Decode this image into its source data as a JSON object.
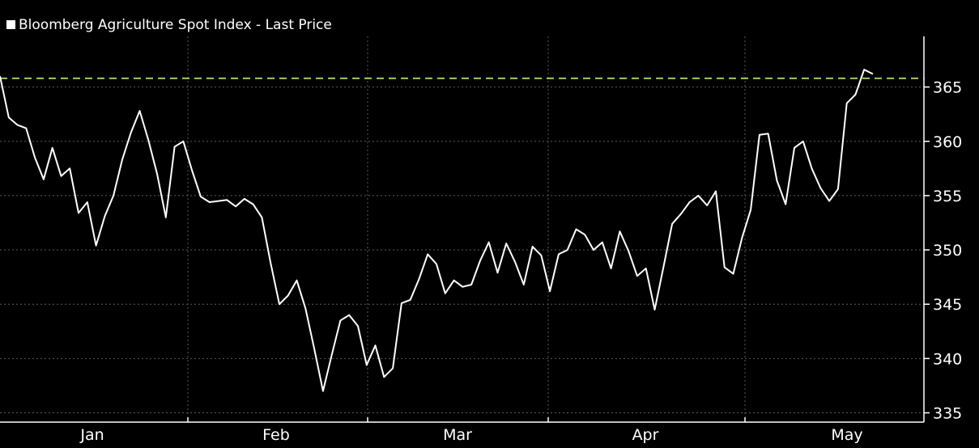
{
  "chart_data": {
    "type": "line",
    "legend": "Bloomberg Agriculture Spot Index - Last Price",
    "xlabel": "",
    "ylabel": "",
    "x_tick_labels": [
      "Jan",
      "Feb",
      "Mar",
      "Apr",
      "May"
    ],
    "y_ticks": [
      335,
      340,
      345,
      350,
      355,
      360,
      365
    ],
    "ylim": [
      334,
      368
    ],
    "grid": true,
    "legend_placement": "top-left",
    "reference_line": {
      "value": 365.8,
      "style": "dashed",
      "color": "#9acd5a"
    },
    "series": [
      {
        "color": "#ffffff",
        "values": [
          366.0,
          362.2,
          361.5,
          361.2,
          358.5,
          356.5,
          359.4,
          356.8,
          357.5,
          353.4,
          354.4,
          350.4,
          353.1,
          355.0,
          358.3,
          360.8,
          362.8,
          360.1,
          357.0,
          353.0,
          359.5,
          360.0,
          357.3,
          354.9,
          354.4,
          354.5,
          354.6,
          354.0,
          354.7,
          354.2,
          353.0,
          348.8,
          345.0,
          345.8,
          347.2,
          344.6,
          340.9,
          337.0,
          340.3,
          343.5,
          344.0,
          343.0,
          339.4,
          341.2,
          338.3,
          339.1,
          345.1,
          345.4,
          347.3,
          349.6,
          348.7,
          346.0,
          347.2,
          346.6,
          346.8,
          349.0,
          350.7,
          347.9,
          350.6,
          348.9,
          346.8,
          350.3,
          349.5,
          346.2,
          349.6,
          350.0,
          351.9,
          351.4,
          350.0,
          350.7,
          348.3,
          351.7,
          349.9,
          347.6,
          348.3,
          344.5,
          348.4,
          352.4,
          353.3,
          354.4,
          355.0,
          354.1,
          355.4,
          348.4,
          347.8,
          351.1,
          353.7,
          360.6,
          360.7,
          356.4,
          354.2,
          359.4,
          360.0,
          357.5,
          355.7,
          354.5,
          355.6,
          363.5,
          364.3,
          366.6,
          366.2
        ]
      }
    ]
  }
}
